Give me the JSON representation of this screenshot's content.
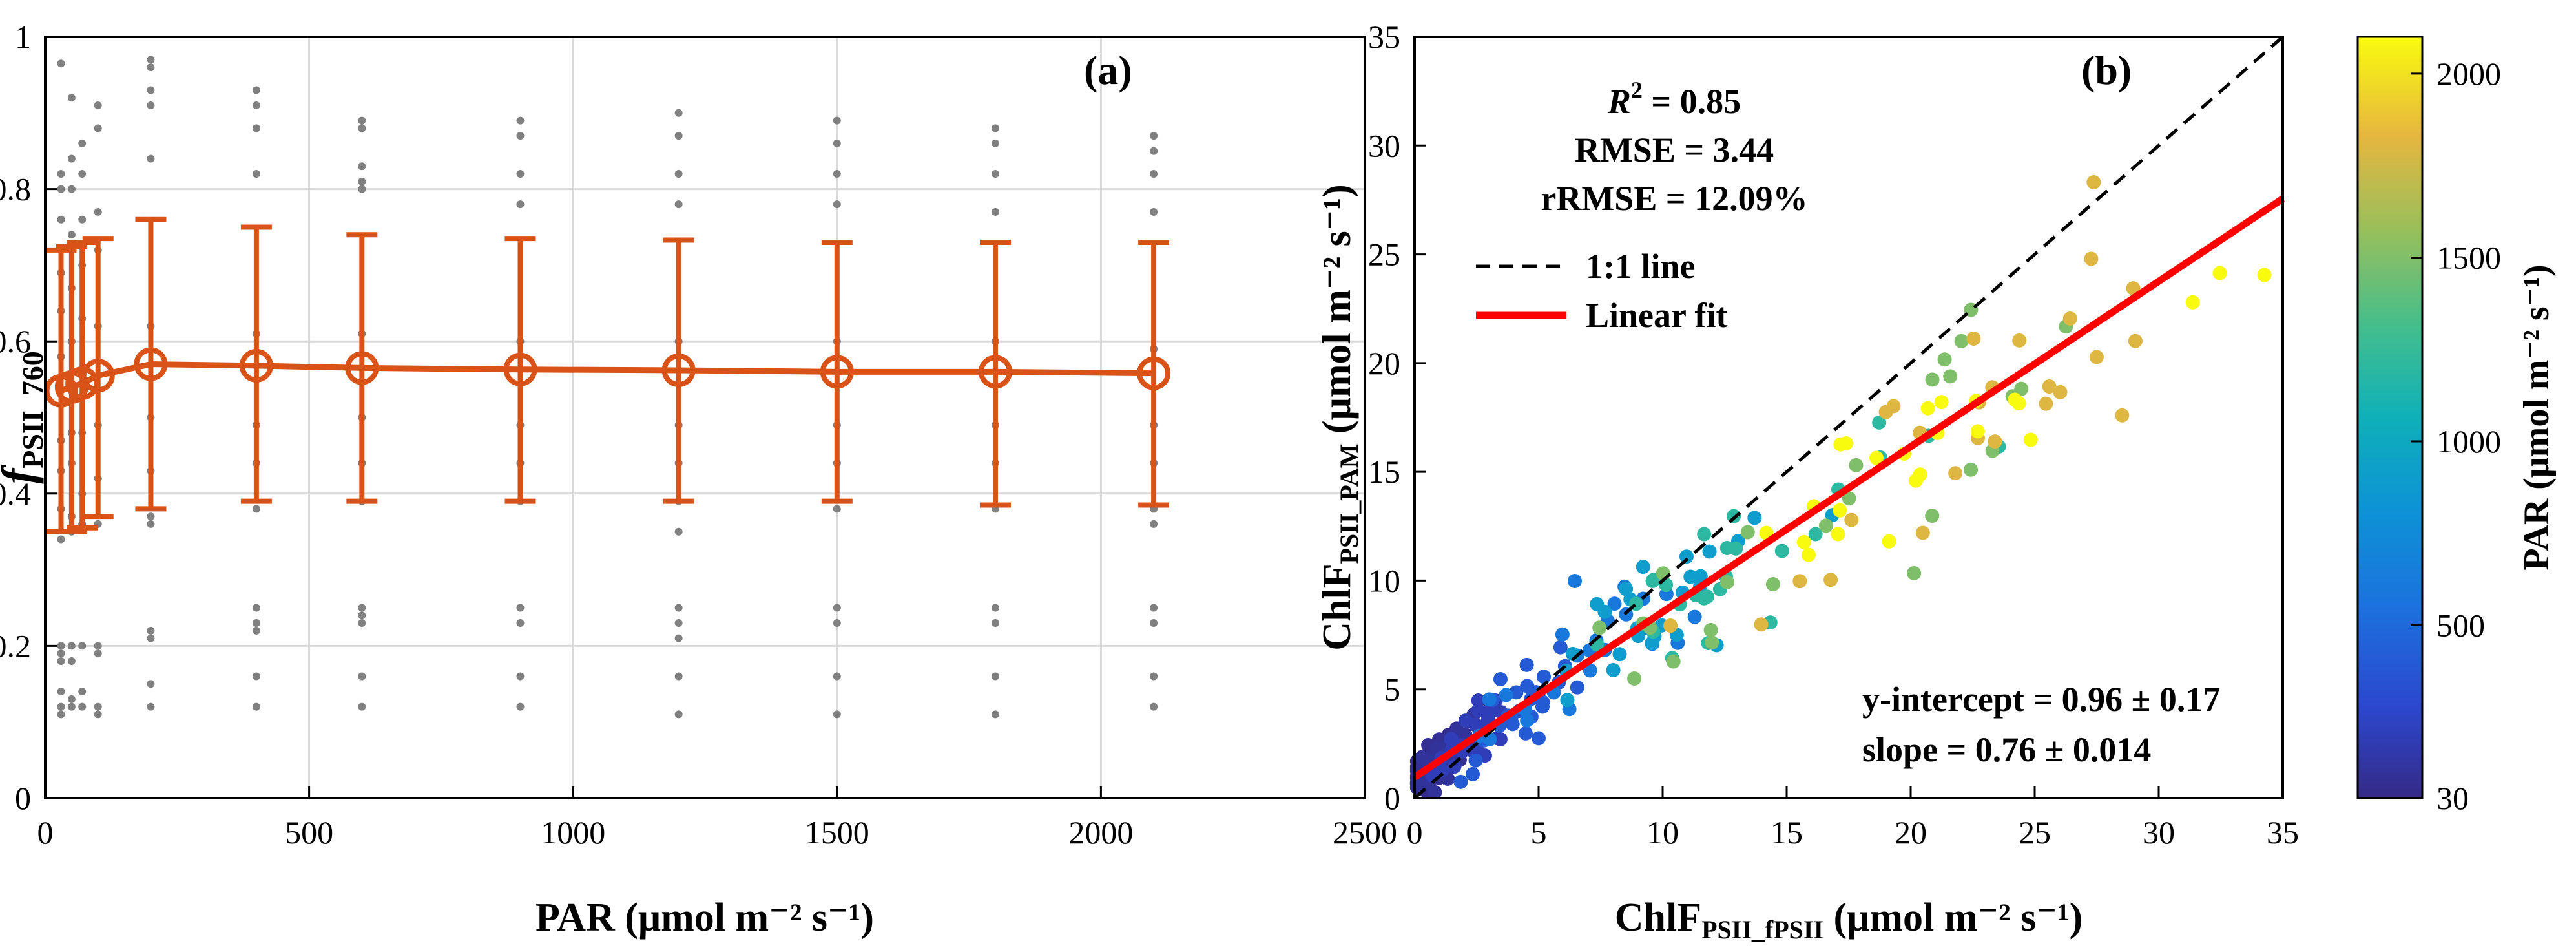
{
  "chart_data": [
    {
      "type": "line",
      "panel_label": "(a)",
      "xlabel": "PAR (μmol m⁻² s⁻¹)",
      "ylabel": {
        "base": "f",
        "sub": "PSII_760"
      },
      "xlim": [
        0,
        2500
      ],
      "ylim": [
        0,
        1
      ],
      "xticks": [
        "0",
        "500",
        "1000",
        "1500",
        "2000",
        "2500"
      ],
      "yticks": [
        "0",
        "0.2",
        "0.4",
        "0.6",
        "0.8",
        "1"
      ],
      "grid": true,
      "line_color": "#D95319",
      "series": [
        {
          "x": [
            30,
            50,
            70,
            100,
            200,
            400,
            600,
            900,
            1200,
            1500,
            1800,
            2100
          ],
          "mean": [
            0.535,
            0.54,
            0.545,
            0.555,
            0.57,
            0.568,
            0.565,
            0.563,
            0.562,
            0.56,
            0.56,
            0.558
          ],
          "lower": [
            0.35,
            0.35,
            0.355,
            0.37,
            0.38,
            0.39,
            0.39,
            0.39,
            0.39,
            0.39,
            0.385,
            0.385
          ],
          "upper": [
            0.72,
            0.725,
            0.73,
            0.735,
            0.76,
            0.75,
            0.74,
            0.735,
            0.733,
            0.73,
            0.73,
            0.73
          ]
        }
      ],
      "scatter_color": "#808080",
      "scatter_points": [
        [
          30,
          0.965
        ],
        [
          30,
          0.82
        ],
        [
          30,
          0.8
        ],
        [
          30,
          0.76
        ],
        [
          30,
          0.72
        ],
        [
          30,
          0.69
        ],
        [
          30,
          0.64
        ],
        [
          30,
          0.58
        ],
        [
          30,
          0.47
        ],
        [
          30,
          0.43
        ],
        [
          30,
          0.38
        ],
        [
          30,
          0.34
        ],
        [
          30,
          0.2
        ],
        [
          30,
          0.19
        ],
        [
          30,
          0.18
        ],
        [
          30,
          0.14
        ],
        [
          30,
          0.12
        ],
        [
          30,
          0.11
        ],
        [
          50,
          0.92
        ],
        [
          50,
          0.84
        ],
        [
          50,
          0.8
        ],
        [
          50,
          0.74
        ],
        [
          50,
          0.67
        ],
        [
          50,
          0.6
        ],
        [
          50,
          0.48
        ],
        [
          50,
          0.44
        ],
        [
          50,
          0.37
        ],
        [
          50,
          0.35
        ],
        [
          50,
          0.2
        ],
        [
          50,
          0.18
        ],
        [
          50,
          0.13
        ],
        [
          50,
          0.12
        ],
        [
          70,
          0.86
        ],
        [
          70,
          0.82
        ],
        [
          70,
          0.76
        ],
        [
          70,
          0.7
        ],
        [
          70,
          0.63
        ],
        [
          70,
          0.48
        ],
        [
          70,
          0.4
        ],
        [
          70,
          0.36
        ],
        [
          70,
          0.2
        ],
        [
          70,
          0.14
        ],
        [
          70,
          0.12
        ],
        [
          100,
          0.91
        ],
        [
          100,
          0.88
        ],
        [
          100,
          0.77
        ],
        [
          100,
          0.72
        ],
        [
          100,
          0.62
        ],
        [
          100,
          0.49
        ],
        [
          100,
          0.42
        ],
        [
          100,
          0.36
        ],
        [
          100,
          0.2
        ],
        [
          100,
          0.19
        ],
        [
          100,
          0.12
        ],
        [
          100,
          0.11
        ],
        [
          200,
          0.97
        ],
        [
          200,
          0.96
        ],
        [
          200,
          0.93
        ],
        [
          200,
          0.91
        ],
        [
          200,
          0.84
        ],
        [
          200,
          0.62
        ],
        [
          200,
          0.5
        ],
        [
          200,
          0.43
        ],
        [
          200,
          0.37
        ],
        [
          200,
          0.36
        ],
        [
          200,
          0.22
        ],
        [
          200,
          0.21
        ],
        [
          200,
          0.15
        ],
        [
          200,
          0.12
        ],
        [
          400,
          0.93
        ],
        [
          400,
          0.91
        ],
        [
          400,
          0.88
        ],
        [
          400,
          0.82
        ],
        [
          400,
          0.61
        ],
        [
          400,
          0.49
        ],
        [
          400,
          0.44
        ],
        [
          400,
          0.38
        ],
        [
          400,
          0.25
        ],
        [
          400,
          0.23
        ],
        [
          400,
          0.22
        ],
        [
          400,
          0.16
        ],
        [
          400,
          0.12
        ],
        [
          600,
          0.89
        ],
        [
          600,
          0.88
        ],
        [
          600,
          0.83
        ],
        [
          600,
          0.81
        ],
        [
          600,
          0.8
        ],
        [
          600,
          0.61
        ],
        [
          600,
          0.5
        ],
        [
          600,
          0.44
        ],
        [
          600,
          0.39
        ],
        [
          600,
          0.25
        ],
        [
          600,
          0.24
        ],
        [
          600,
          0.23
        ],
        [
          600,
          0.16
        ],
        [
          600,
          0.12
        ],
        [
          900,
          0.89
        ],
        [
          900,
          0.87
        ],
        [
          900,
          0.82
        ],
        [
          900,
          0.78
        ],
        [
          900,
          0.6
        ],
        [
          900,
          0.49
        ],
        [
          900,
          0.44
        ],
        [
          900,
          0.39
        ],
        [
          900,
          0.25
        ],
        [
          900,
          0.23
        ],
        [
          900,
          0.16
        ],
        [
          900,
          0.12
        ],
        [
          1200,
          0.9
        ],
        [
          1200,
          0.87
        ],
        [
          1200,
          0.82
        ],
        [
          1200,
          0.78
        ],
        [
          1200,
          0.6
        ],
        [
          1200,
          0.49
        ],
        [
          1200,
          0.44
        ],
        [
          1200,
          0.39
        ],
        [
          1200,
          0.35
        ],
        [
          1200,
          0.25
        ],
        [
          1200,
          0.23
        ],
        [
          1200,
          0.21
        ],
        [
          1200,
          0.16
        ],
        [
          1200,
          0.11
        ],
        [
          1500,
          0.89
        ],
        [
          1500,
          0.86
        ],
        [
          1500,
          0.82
        ],
        [
          1500,
          0.78
        ],
        [
          1500,
          0.6
        ],
        [
          1500,
          0.49
        ],
        [
          1500,
          0.44
        ],
        [
          1500,
          0.38
        ],
        [
          1500,
          0.25
        ],
        [
          1500,
          0.23
        ],
        [
          1500,
          0.16
        ],
        [
          1500,
          0.11
        ],
        [
          1800,
          0.88
        ],
        [
          1800,
          0.86
        ],
        [
          1800,
          0.82
        ],
        [
          1800,
          0.77
        ],
        [
          1800,
          0.6
        ],
        [
          1800,
          0.49
        ],
        [
          1800,
          0.44
        ],
        [
          1800,
          0.38
        ],
        [
          1800,
          0.25
        ],
        [
          1800,
          0.23
        ],
        [
          1800,
          0.16
        ],
        [
          1800,
          0.11
        ],
        [
          2100,
          0.87
        ],
        [
          2100,
          0.85
        ],
        [
          2100,
          0.82
        ],
        [
          2100,
          0.77
        ],
        [
          2100,
          0.59
        ],
        [
          2100,
          0.49
        ],
        [
          2100,
          0.44
        ],
        [
          2100,
          0.38
        ],
        [
          2100,
          0.36
        ],
        [
          2100,
          0.25
        ],
        [
          2100,
          0.23
        ],
        [
          2100,
          0.16
        ],
        [
          2100,
          0.12
        ]
      ]
    },
    {
      "type": "scatter",
      "panel_label": "(b)",
      "xlabel": {
        "base": "ChlF",
        "sub": "PSII_fPSII",
        "rest": " (μmol m⁻² s⁻¹)"
      },
      "ylabel": {
        "base": "ChlF",
        "sub": "PSII_PAM",
        "rest": " (μmol m⁻² s⁻¹)"
      },
      "xlim": [
        0,
        35
      ],
      "ylim": [
        0,
        35
      ],
      "xticks": [
        "0",
        "5",
        "10",
        "15",
        "20",
        "25",
        "30",
        "35"
      ],
      "yticks": [
        "0",
        "5",
        "10",
        "15",
        "20",
        "25",
        "30",
        "35"
      ],
      "grid": false,
      "stats": {
        "r2_label": "R",
        "r2_sup": "2",
        "r2_value": " = 0.85",
        "rmse": "RMSE = 3.44",
        "rrmse": "rRMSE = 12.09%",
        "intercept": "y-intercept = 0.96 ± 0.17",
        "slope": "slope = 0.76 ± 0.014"
      },
      "legend": [
        {
          "label": "1:1 line",
          "style": "dashed",
          "color": "#000000"
        },
        {
          "label": "Linear fit",
          "style": "solid",
          "color": "#FF0000"
        }
      ],
      "fit": {
        "intercept": 0.96,
        "slope": 0.76
      },
      "colorbar": {
        "label": "PAR (μmol m⁻² s⁻¹)",
        "ticks": [
          "30",
          "500",
          "1000",
          "1500",
          "2000"
        ],
        "tick_values": [
          30,
          500,
          1000,
          1500,
          2000
        ],
        "range": [
          30,
          2100
        ],
        "colormap": "parula"
      }
    }
  ]
}
